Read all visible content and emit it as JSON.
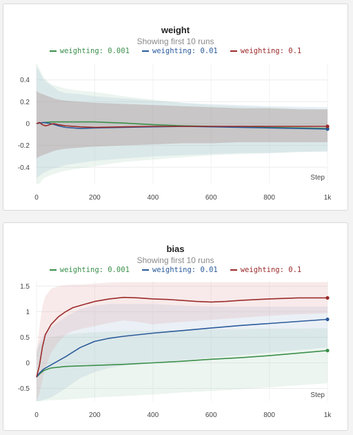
{
  "charts": [
    {
      "id": "weight",
      "title": "weight",
      "subtitle": "Showing first 10 runs"
    },
    {
      "id": "bias",
      "title": "bias",
      "subtitle": "Showing first 10 runs"
    }
  ],
  "chart_data": [
    {
      "type": "line",
      "title": "weight",
      "subtitle": "Showing first 10 runs",
      "xlabel": "Step",
      "ylabel": "",
      "xlim": [
        0,
        1000
      ],
      "ylim": [
        -0.55,
        0.55
      ],
      "x_ticks": [
        0,
        200,
        400,
        600,
        800,
        1000
      ],
      "x_tick_labels": [
        "0",
        "200",
        "400",
        "600",
        "800",
        "1k"
      ],
      "y_ticks": [
        0.4,
        0.2,
        0,
        -0.2,
        -0.4
      ],
      "y_tick_labels": [
        "0.4",
        "0.2",
        "0",
        "-0.2",
        "-0.4"
      ],
      "grid": true,
      "legend_position": "top-center",
      "series": [
        {
          "name": "weighting: 0.001",
          "color": "#3a8f4a",
          "x": [
            0,
            10,
            25,
            50,
            100,
            150,
            200,
            250,
            300,
            400,
            500,
            600,
            700,
            800,
            900,
            1000
          ],
          "y": [
            0.0,
            0.005,
            0.01,
            0.015,
            0.015,
            0.015,
            0.015,
            0.01,
            0.005,
            -0.01,
            -0.02,
            -0.025,
            -0.03,
            -0.035,
            -0.04,
            -0.045
          ],
          "band_upper": [
            0.55,
            0.5,
            0.42,
            0.36,
            0.32,
            0.3,
            0.29,
            0.27,
            0.25,
            0.22,
            0.19,
            0.17,
            0.16,
            0.15,
            0.14,
            0.13
          ],
          "band_lower": [
            -0.55,
            -0.55,
            -0.5,
            -0.47,
            -0.43,
            -0.41,
            -0.39,
            -0.37,
            -0.35,
            -0.33,
            -0.31,
            -0.29,
            -0.28,
            -0.27,
            -0.26,
            -0.25
          ]
        },
        {
          "name": "weighting: 0.01",
          "color": "#2a5a9a",
          "x": [
            0,
            10,
            25,
            50,
            75,
            100,
            150,
            200,
            300,
            400,
            500,
            600,
            700,
            800,
            900,
            1000
          ],
          "y": [
            0.0,
            0.005,
            0.01,
            0.0,
            -0.02,
            -0.035,
            -0.045,
            -0.04,
            -0.035,
            -0.03,
            -0.025,
            -0.03,
            -0.035,
            -0.04,
            -0.045,
            -0.05
          ],
          "band_upper": [
            0.52,
            0.48,
            0.4,
            0.35,
            0.3,
            0.28,
            0.27,
            0.25,
            0.23,
            0.21,
            0.19,
            0.18,
            0.17,
            0.16,
            0.155,
            0.15
          ],
          "band_lower": [
            -0.5,
            -0.48,
            -0.45,
            -0.42,
            -0.4,
            -0.38,
            -0.36,
            -0.34,
            -0.32,
            -0.3,
            -0.29,
            -0.28,
            -0.27,
            -0.27,
            -0.26,
            -0.26
          ]
        },
        {
          "name": "weighting: 0.1",
          "color": "#9b2a2a",
          "x": [
            0,
            10,
            20,
            30,
            40,
            50,
            60,
            75,
            100,
            150,
            200,
            300,
            400,
            500,
            600,
            700,
            800,
            900,
            1000
          ],
          "y": [
            0.0,
            0.01,
            -0.01,
            -0.02,
            -0.015,
            -0.005,
            0.0,
            -0.01,
            -0.02,
            -0.03,
            -0.035,
            -0.03,
            -0.025,
            -0.025,
            -0.025,
            -0.025,
            -0.025,
            -0.025,
            -0.025
          ],
          "band_upper": [
            0.3,
            0.28,
            0.27,
            0.26,
            0.25,
            0.24,
            0.23,
            0.22,
            0.21,
            0.2,
            0.19,
            0.18,
            0.17,
            0.16,
            0.15,
            0.14,
            0.14,
            0.13,
            0.13
          ],
          "band_lower": [
            -0.32,
            -0.3,
            -0.29,
            -0.28,
            -0.27,
            -0.26,
            -0.25,
            -0.24,
            -0.23,
            -0.22,
            -0.21,
            -0.2,
            -0.19,
            -0.18,
            -0.18,
            -0.17,
            -0.17,
            -0.17,
            -0.17
          ]
        }
      ]
    },
    {
      "type": "line",
      "title": "bias",
      "subtitle": "Showing first 10 runs",
      "xlabel": "Step",
      "ylabel": "",
      "xlim": [
        0,
        1000
      ],
      "ylim": [
        -0.75,
        1.6
      ],
      "x_ticks": [
        0,
        200,
        400,
        600,
        800,
        1000
      ],
      "x_tick_labels": [
        "0",
        "200",
        "400",
        "600",
        "800",
        "1k"
      ],
      "y_ticks": [
        1.5,
        1,
        0.5,
        0,
        -0.5
      ],
      "y_tick_labels": [
        "1.5",
        "1",
        "0.5",
        "0",
        "-0.5"
      ],
      "grid": true,
      "legend_position": "top-center",
      "series": [
        {
          "name": "weighting: 0.001",
          "color": "#3a8f4a",
          "x": [
            0,
            10,
            25,
            50,
            100,
            150,
            200,
            300,
            400,
            500,
            600,
            700,
            800,
            900,
            1000
          ],
          "y": [
            -0.28,
            -0.22,
            -0.15,
            -0.1,
            -0.07,
            -0.06,
            -0.05,
            -0.03,
            0.0,
            0.03,
            0.07,
            0.1,
            0.14,
            0.19,
            0.24
          ],
          "band_upper": [
            0.2,
            0.35,
            0.45,
            0.5,
            0.55,
            0.58,
            0.6,
            0.62,
            0.63,
            0.64,
            0.65,
            0.66,
            0.67,
            0.67,
            0.68
          ],
          "band_lower": [
            -0.75,
            -0.75,
            -0.74,
            -0.73,
            -0.72,
            -0.7,
            -0.68,
            -0.65,
            -0.62,
            -0.58,
            -0.55,
            -0.52,
            -0.48,
            -0.44,
            -0.4
          ]
        },
        {
          "name": "weighting: 0.01",
          "color": "#2a5a9a",
          "x": [
            0,
            10,
            25,
            50,
            100,
            150,
            200,
            250,
            300,
            400,
            500,
            600,
            700,
            800,
            900,
            1000
          ],
          "y": [
            -0.28,
            -0.2,
            -0.12,
            -0.04,
            0.12,
            0.3,
            0.42,
            0.48,
            0.52,
            0.58,
            0.63,
            0.68,
            0.73,
            0.77,
            0.81,
            0.85
          ],
          "band_upper": [
            0.25,
            0.4,
            0.55,
            0.7,
            0.9,
            1.05,
            1.12,
            1.15,
            1.15,
            1.15,
            1.12,
            1.1,
            1.1,
            1.1,
            1.1,
            1.1
          ],
          "band_lower": [
            -0.75,
            -0.75,
            -0.72,
            -0.68,
            -0.5,
            -0.3,
            -0.18,
            -0.1,
            -0.05,
            0.0,
            0.05,
            0.1,
            0.15,
            0.2,
            0.25,
            0.3
          ]
        },
        {
          "name": "weighting: 0.1",
          "color": "#9b2a2a",
          "x": [
            0,
            10,
            20,
            30,
            50,
            75,
            100,
            125,
            150,
            200,
            250,
            300,
            350,
            400,
            450,
            500,
            550,
            600,
            650,
            700,
            800,
            900,
            1000
          ],
          "y": [
            -0.28,
            -0.05,
            0.3,
            0.55,
            0.75,
            0.9,
            1.0,
            1.08,
            1.12,
            1.2,
            1.25,
            1.28,
            1.27,
            1.25,
            1.24,
            1.22,
            1.2,
            1.19,
            1.2,
            1.22,
            1.25,
            1.27,
            1.27
          ],
          "band_upper": [
            0.2,
            0.7,
            1.1,
            1.3,
            1.45,
            1.5,
            1.52,
            1.53,
            1.53,
            1.55,
            1.57,
            1.58,
            1.58,
            1.58,
            1.58,
            1.58,
            1.58,
            1.58,
            1.58,
            1.58,
            1.58,
            1.58,
            1.58
          ],
          "band_lower": [
            -0.75,
            -0.6,
            -0.35,
            -0.1,
            0.2,
            0.4,
            0.55,
            0.62,
            0.66,
            0.72,
            0.78,
            0.83,
            0.8,
            0.75,
            0.78,
            0.8,
            0.82,
            0.84,
            0.86,
            0.88,
            0.92,
            0.95,
            0.97
          ]
        }
      ]
    }
  ]
}
